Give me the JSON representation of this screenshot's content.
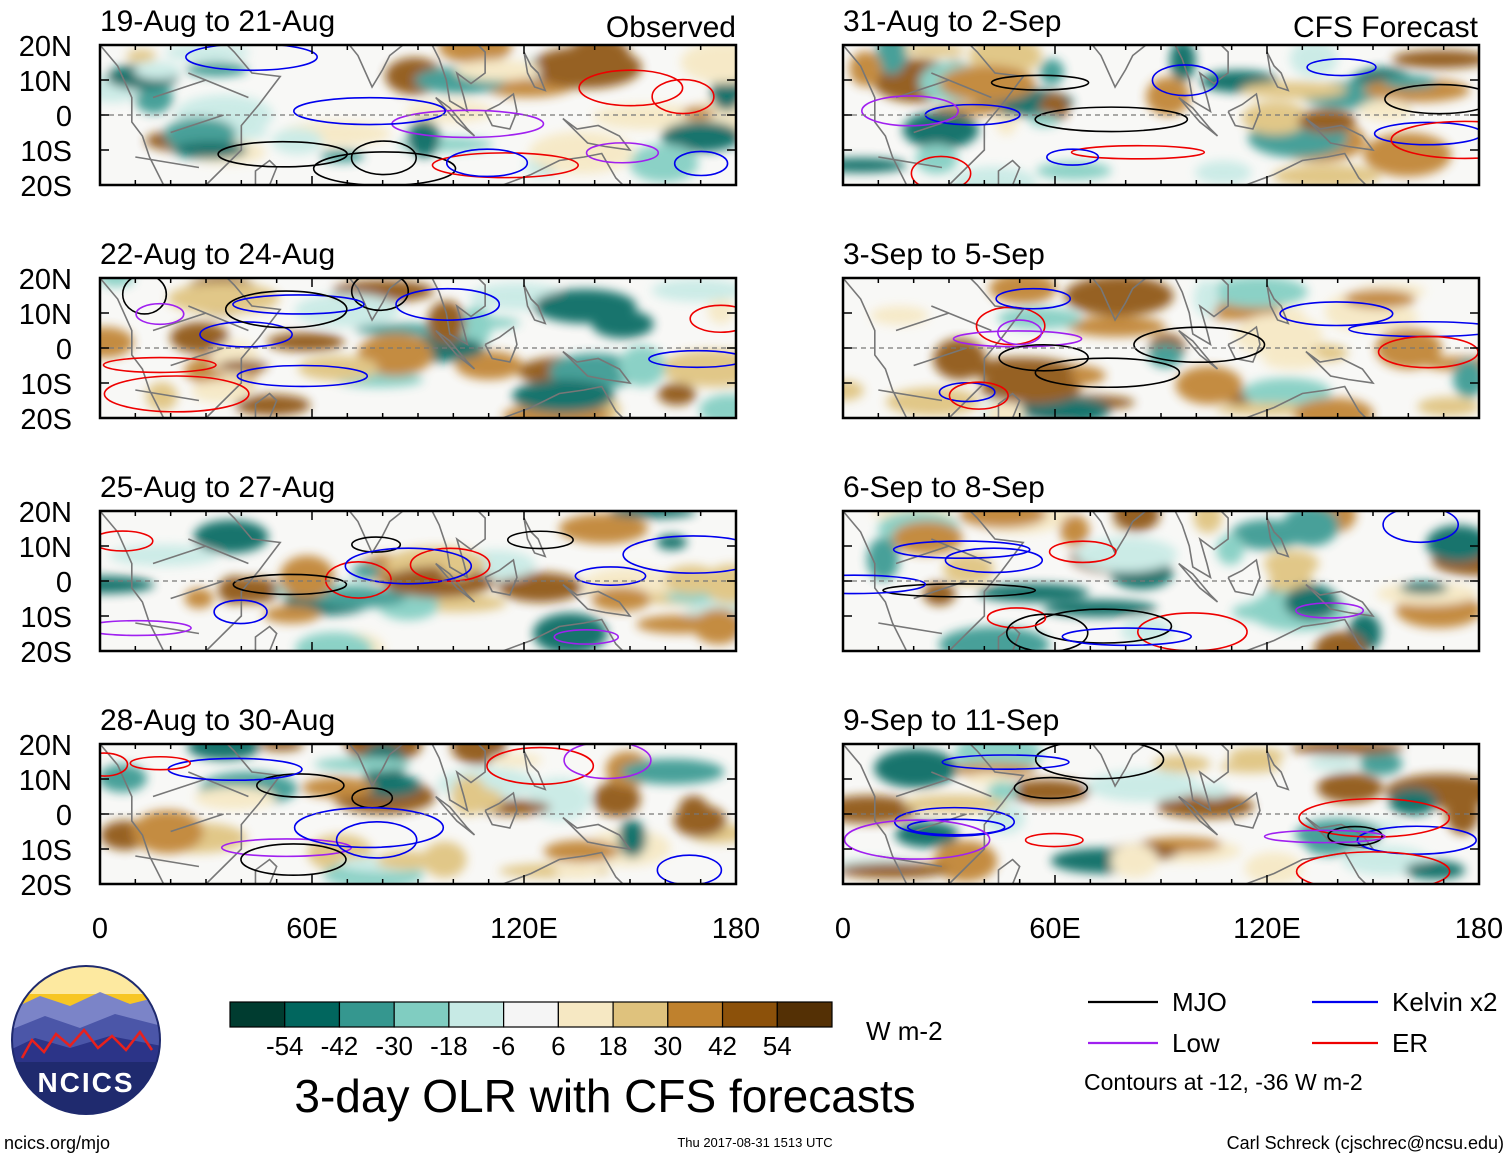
{
  "chart_data": {
    "type": "heatmap",
    "title": "3-day OLR with CFS forecasts",
    "column_headers": [
      "Observed",
      "CFS Forecast"
    ],
    "panels": [
      {
        "id": "obs-1",
        "title": "19-Aug to 21-Aug",
        "source": "observed"
      },
      {
        "id": "obs-2",
        "title": "22-Aug to 24-Aug",
        "source": "observed"
      },
      {
        "id": "obs-3",
        "title": "25-Aug to 27-Aug",
        "source": "observed"
      },
      {
        "id": "obs-4",
        "title": "28-Aug to 30-Aug",
        "source": "observed"
      },
      {
        "id": "fc-1",
        "title": "31-Aug to 2-Sep",
        "source": "forecast"
      },
      {
        "id": "fc-2",
        "title": "3-Sep to 5-Sep",
        "source": "forecast"
      },
      {
        "id": "fc-3",
        "title": "6-Sep to 8-Sep",
        "source": "forecast"
      },
      {
        "id": "fc-4",
        "title": "9-Sep to 11-Sep",
        "source": "forecast"
      }
    ],
    "y_axis": {
      "range": [
        -20,
        20
      ],
      "ticks": [
        20,
        10,
        0,
        -10,
        -20
      ],
      "tick_labels": [
        "20N",
        "10N",
        "0",
        "10S",
        "20S"
      ]
    },
    "x_axis": {
      "range": [
        0,
        180
      ],
      "ticks": [
        0,
        60,
        120,
        180
      ],
      "tick_labels": [
        "0",
        "60E",
        "120E",
        "180"
      ]
    },
    "colorbar": {
      "unit": "W m-2",
      "tick_labels": [
        "-54",
        "-42",
        "-30",
        "-18",
        "-6",
        "6",
        "18",
        "30",
        "42",
        "54"
      ],
      "colors": [
        "#003c30",
        "#01665e",
        "#35978f",
        "#80cdc1",
        "#c7eae5",
        "#f5f5f5",
        "#f6e8c3",
        "#dfc27d",
        "#bf812d",
        "#8c510a",
        "#543005"
      ]
    },
    "legend": {
      "items": [
        {
          "label": "MJO",
          "color": "#000000"
        },
        {
          "label": "Kelvin x2",
          "color": "#0000ee"
        },
        {
          "label": "Low",
          "color": "#a020f0"
        },
        {
          "label": "ER",
          "color": "#ee0000"
        }
      ],
      "note": "Contours at -12, -36 W m-2"
    }
  },
  "footer": {
    "logo_text": "NCICS",
    "url": "ncics.org/mjo",
    "timestamp": "Thu 2017-08-31 1513 UTC",
    "credit": "Carl Schreck (cjschrec@ncsu.edu)"
  }
}
